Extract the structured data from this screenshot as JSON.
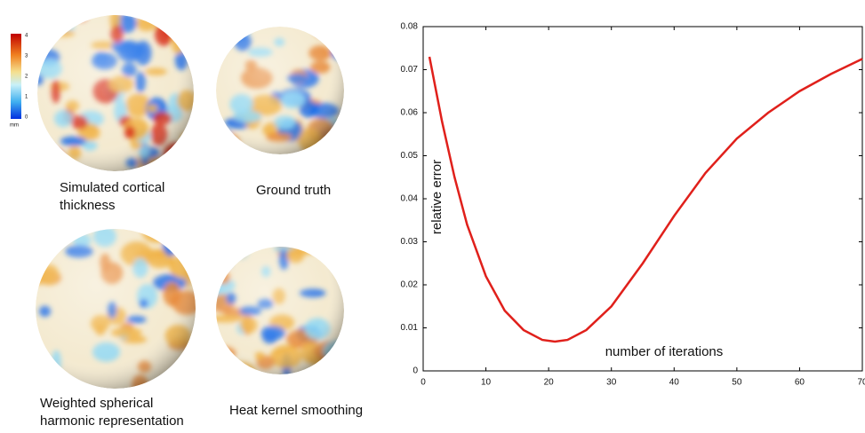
{
  "panels": [
    {
      "caption": [
        "Simulated cortical",
        "thickness"
      ]
    },
    {
      "caption": [
        "Ground truth"
      ]
    },
    {
      "caption": [
        "Weighted spherical",
        "harmonic representation"
      ]
    },
    {
      "caption": [
        "Heat kernel smoothing"
      ]
    }
  ],
  "colorbar": {
    "labels": [
      "4",
      "3",
      "2",
      "1",
      "0"
    ],
    "unit": "mm"
  },
  "chart_data": {
    "type": "line",
    "xlabel": "number of iterations",
    "ylabel": "relative error",
    "color": "#e0201b",
    "x": [
      1,
      3,
      5,
      7,
      10,
      13,
      16,
      19,
      21,
      23,
      26,
      30,
      35,
      40,
      45,
      50,
      55,
      60,
      65,
      70
    ],
    "values": [
      0.073,
      0.058,
      0.045,
      0.034,
      0.022,
      0.014,
      0.0095,
      0.0072,
      0.0068,
      0.0072,
      0.0095,
      0.015,
      0.025,
      0.036,
      0.046,
      0.054,
      0.06,
      0.065,
      0.069,
      0.0725
    ],
    "xlim": [
      0,
      70
    ],
    "ylim": [
      0,
      0.08
    ],
    "xticks": [
      0,
      10,
      20,
      30,
      40,
      50,
      60,
      70
    ],
    "yticks": [
      0,
      0.01,
      0.02,
      0.03,
      0.04,
      0.05,
      0.06,
      0.07,
      0.08
    ]
  }
}
